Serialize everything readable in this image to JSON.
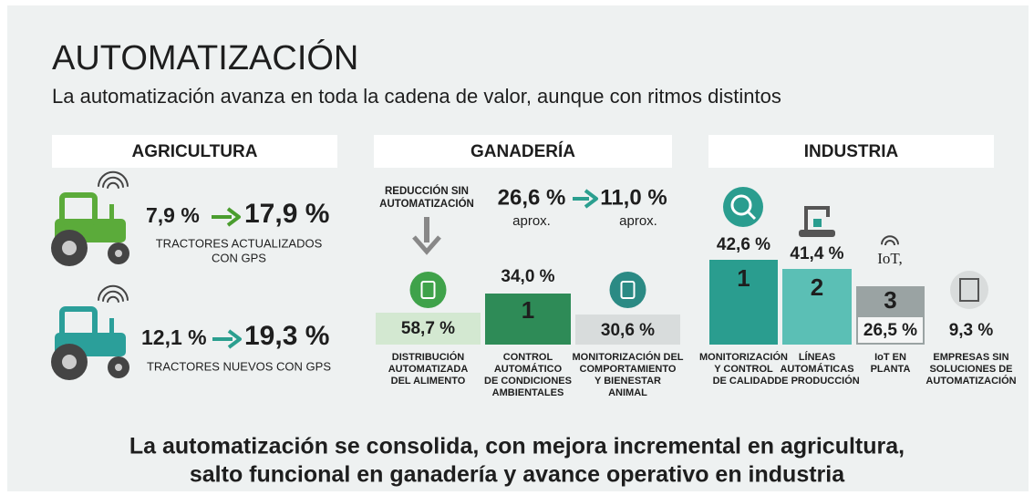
{
  "title": "AUTOMATIZACIÓN",
  "subtitle": "La automatización avanza en toda la cadena de valor, aunque con ritmos distintos",
  "agricultura": {
    "header": "AGRICULTURA",
    "rows": [
      {
        "from": "7,9 %",
        "to": "17,9 %",
        "label": [
          "TRACTORES ACTUALIZADOS",
          "CON GPS"
        ]
      },
      {
        "from": "12,1 %",
        "to": "19,3 %",
        "label": [
          "TRACTORES NUEVOS CON GPS"
        ]
      }
    ]
  },
  "ganaderia": {
    "header": "GANADERÍA",
    "note": [
      "REDUCCIÓN SIN",
      "AUTOMATIZACIÓN"
    ],
    "from": "26,6 %",
    "from_note": "aprox.",
    "to": "11,0 %",
    "to_note": "aprox.",
    "items": [
      {
        "value": "58,7 %",
        "label": [
          "DISTRIBUCIÓN",
          "AUTOMATIZADA",
          "DEL ALIMENTO"
        ]
      },
      {
        "value": "34,0 %",
        "rank": "1",
        "label": [
          "CONTROL",
          "AUTOMÁTICO",
          "DE CONDICIONES",
          "AMBIENTALES"
        ]
      },
      {
        "value": "30,6 %",
        "label": [
          "MONITORIZACIÓN DEL",
          "COMPORTAMIENTO",
          "Y BIENESTAR",
          "ANIMAL"
        ]
      }
    ]
  },
  "industria": {
    "header": "INDUSTRIA",
    "iot_icon": "IoT,",
    "items": [
      {
        "value": "42,6 %",
        "rank": "1",
        "label": [
          "MONITORIZACIÓN",
          "Y CONTROL",
          "DE CALIDAD"
        ]
      },
      {
        "value": "41,4 %",
        "rank": "2",
        "label": [
          "LÍNEAS",
          "AUTOMÁTICAS",
          "DE PRODUCCIÓN"
        ]
      },
      {
        "value": "26,5 %",
        "rank": "3",
        "label": [
          "IoT EN",
          "PLANTA"
        ]
      },
      {
        "value": "9,3 %",
        "label": [
          "EMPRESAS SIN",
          "SOLUCIONES DE",
          "AUTOMATIZACIÓN"
        ]
      }
    ]
  },
  "footer": [
    "La automatización se consolida, con mejora incremental en agricultura,",
    "salto funcional en ganadería y avance operativo en industria"
  ]
}
